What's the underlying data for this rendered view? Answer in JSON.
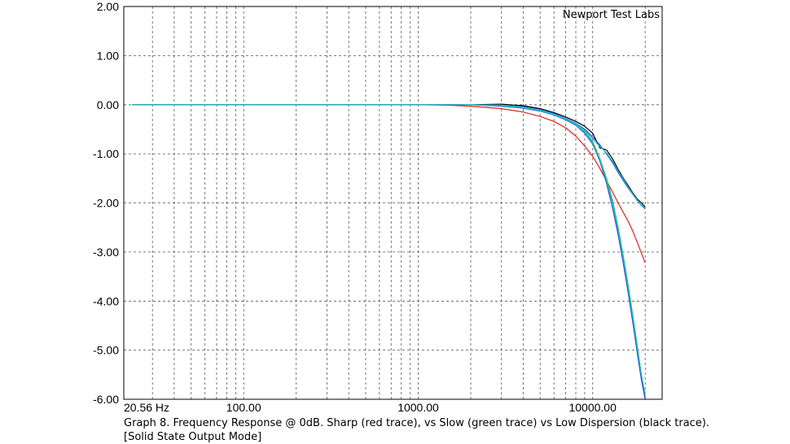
{
  "chart_data": {
    "type": "line",
    "title": "",
    "watermark": "Newport Test Labs",
    "x_scale": "log",
    "xlim": [
      20.56,
      25000
    ],
    "ylim": [
      -6,
      2
    ],
    "grid": true,
    "grid_style": "dashed",
    "y_ticks": [
      {
        "value": 2,
        "label": "2.00"
      },
      {
        "value": 1,
        "label": "1.00"
      },
      {
        "value": 0,
        "label": "0.00"
      },
      {
        "value": -1,
        "label": "-1.00"
      },
      {
        "value": -2,
        "label": "-2.00"
      },
      {
        "value": -3,
        "label": "-3.00"
      },
      {
        "value": -4,
        "label": "-4.00"
      },
      {
        "value": -5,
        "label": "-5.00"
      },
      {
        "value": -6,
        "label": "-6.00"
      }
    ],
    "x_ticks": [
      {
        "value": 20.56,
        "label": "20.56 Hz"
      },
      {
        "value": 100,
        "label": "100.00"
      },
      {
        "value": 1000,
        "label": "1000.00"
      },
      {
        "value": 10000,
        "label": "10000.00"
      }
    ],
    "series": [
      {
        "key": "sharp",
        "color": "#e02020",
        "points": [
          [
            23,
            0
          ],
          [
            100,
            0
          ],
          [
            1000,
            0
          ],
          [
            1500,
            -0.01
          ],
          [
            2000,
            -0.03
          ],
          [
            3000,
            -0.08
          ],
          [
            4000,
            -0.15
          ],
          [
            5000,
            -0.24
          ],
          [
            6000,
            -0.34
          ],
          [
            7000,
            -0.47
          ],
          [
            8000,
            -0.64
          ],
          [
            9000,
            -0.84
          ],
          [
            10000,
            -1.05
          ],
          [
            11000,
            -1.3
          ],
          [
            12000,
            -1.55
          ],
          [
            13000,
            -1.78
          ],
          [
            14000,
            -2.0
          ],
          [
            15000,
            -2.2
          ],
          [
            16000,
            -2.38
          ],
          [
            17000,
            -2.58
          ],
          [
            18000,
            -2.8
          ],
          [
            19000,
            -3.02
          ],
          [
            20000,
            -3.22
          ]
        ]
      },
      {
        "key": "slow",
        "color": "#22b24c",
        "points": [
          [
            23,
            0
          ],
          [
            100,
            0
          ],
          [
            1000,
            0
          ],
          [
            2000,
            0
          ],
          [
            3000,
            -0.02
          ],
          [
            4000,
            -0.06
          ],
          [
            5000,
            -0.12
          ],
          [
            6000,
            -0.2
          ],
          [
            7000,
            -0.3
          ],
          [
            8000,
            -0.4
          ],
          [
            9000,
            -0.55
          ],
          [
            10000,
            -0.75
          ],
          [
            11000,
            -1.1
          ],
          [
            12000,
            -1.5
          ],
          [
            13000,
            -1.95
          ],
          [
            14000,
            -2.5
          ],
          [
            15000,
            -3.1
          ],
          [
            16000,
            -3.7
          ],
          [
            17000,
            -4.3
          ],
          [
            18000,
            -4.9
          ],
          [
            19000,
            -5.5
          ],
          [
            20000,
            -5.95
          ]
        ]
      },
      {
        "key": "low_dispersion",
        "color": "#000000",
        "points": [
          [
            23,
            0
          ],
          [
            100,
            0
          ],
          [
            1000,
            0
          ],
          [
            2000,
            0
          ],
          [
            3000,
            0.01
          ],
          [
            4000,
            -0.02
          ],
          [
            5000,
            -0.08
          ],
          [
            6000,
            -0.16
          ],
          [
            7000,
            -0.25
          ],
          [
            8000,
            -0.34
          ],
          [
            9000,
            -0.44
          ],
          [
            10000,
            -0.58
          ],
          [
            11000,
            -0.88
          ],
          [
            12000,
            -0.92
          ],
          [
            13000,
            -1.1
          ],
          [
            14000,
            -1.32
          ],
          [
            15000,
            -1.5
          ],
          [
            16000,
            -1.65
          ],
          [
            17000,
            -1.8
          ],
          [
            18000,
            -1.92
          ],
          [
            19000,
            -2.0
          ],
          [
            20000,
            -2.08
          ]
        ]
      },
      {
        "key": "blue_upper",
        "color": "#2244dd",
        "points": [
          [
            23,
            0
          ],
          [
            100,
            0
          ],
          [
            1000,
            0
          ],
          [
            2000,
            0
          ],
          [
            3000,
            -0.01
          ],
          [
            4000,
            -0.04
          ],
          [
            5000,
            -0.1
          ],
          [
            6000,
            -0.18
          ],
          [
            7000,
            -0.28
          ],
          [
            8000,
            -0.38
          ],
          [
            9000,
            -0.5
          ],
          [
            10000,
            -0.66
          ],
          [
            11000,
            -0.82
          ],
          [
            12000,
            -1.0
          ],
          [
            13000,
            -1.18
          ],
          [
            14000,
            -1.38
          ],
          [
            15000,
            -1.55
          ],
          [
            16000,
            -1.7
          ],
          [
            17000,
            -1.83
          ],
          [
            18000,
            -1.95
          ],
          [
            19000,
            -2.05
          ],
          [
            20000,
            -2.12
          ]
        ]
      },
      {
        "key": "cyan_upper",
        "color": "#20c0c0",
        "points": [
          [
            23,
            0
          ],
          [
            100,
            0
          ],
          [
            1000,
            0
          ],
          [
            2000,
            0
          ],
          [
            3000,
            -0.01
          ],
          [
            4000,
            -0.05
          ],
          [
            5000,
            -0.11
          ],
          [
            6000,
            -0.19
          ],
          [
            7000,
            -0.29
          ],
          [
            8000,
            -0.39
          ],
          [
            9000,
            -0.52
          ],
          [
            10000,
            -0.7
          ],
          [
            11000,
            -0.85
          ],
          [
            12000,
            -0.98
          ],
          [
            13000,
            -1.15
          ],
          [
            14000,
            -1.35
          ],
          [
            15000,
            -1.52
          ],
          [
            16000,
            -1.68
          ],
          [
            17000,
            -1.82
          ],
          [
            18000,
            -1.94
          ],
          [
            19000,
            -2.04
          ],
          [
            20000,
            -2.1
          ]
        ]
      },
      {
        "key": "blue_lower",
        "color": "#2244dd",
        "points": [
          [
            23,
            0
          ],
          [
            100,
            0
          ],
          [
            1000,
            0
          ],
          [
            2000,
            0
          ],
          [
            3000,
            -0.03
          ],
          [
            4000,
            -0.07
          ],
          [
            5000,
            -0.13
          ],
          [
            6000,
            -0.21
          ],
          [
            7000,
            -0.31
          ],
          [
            8000,
            -0.42
          ],
          [
            9000,
            -0.58
          ],
          [
            10000,
            -0.8
          ],
          [
            11000,
            -1.15
          ],
          [
            12000,
            -1.6
          ],
          [
            13000,
            -2.1
          ],
          [
            14000,
            -2.65
          ],
          [
            15000,
            -3.25
          ],
          [
            16000,
            -3.85
          ],
          [
            17000,
            -4.45
          ],
          [
            18000,
            -5.05
          ],
          [
            19000,
            -5.6
          ],
          [
            20000,
            -6.0
          ]
        ]
      },
      {
        "key": "cyan_lower",
        "color": "#20c0c0",
        "points": [
          [
            23,
            0
          ],
          [
            100,
            0
          ],
          [
            1000,
            0
          ],
          [
            2000,
            0
          ],
          [
            3000,
            -0.02
          ],
          [
            4000,
            -0.06
          ],
          [
            5000,
            -0.12
          ],
          [
            6000,
            -0.2
          ],
          [
            7000,
            -0.3
          ],
          [
            8000,
            -0.41
          ],
          [
            9000,
            -0.56
          ],
          [
            10000,
            -0.78
          ],
          [
            11000,
            -1.12
          ],
          [
            12000,
            -1.55
          ],
          [
            13000,
            -2.0
          ],
          [
            14000,
            -2.55
          ],
          [
            15000,
            -3.15
          ],
          [
            16000,
            -3.75
          ],
          [
            17000,
            -4.35
          ],
          [
            18000,
            -4.95
          ],
          [
            19000,
            -5.5
          ],
          [
            20000,
            -5.9
          ]
        ]
      }
    ]
  },
  "caption": {
    "line1": "Graph 8. Frequency Response @ 0dB. Sharp (red trace), vs Slow (green trace) vs Low Dispersion (black trace).",
    "line2": "[Solid State Output Mode]"
  }
}
